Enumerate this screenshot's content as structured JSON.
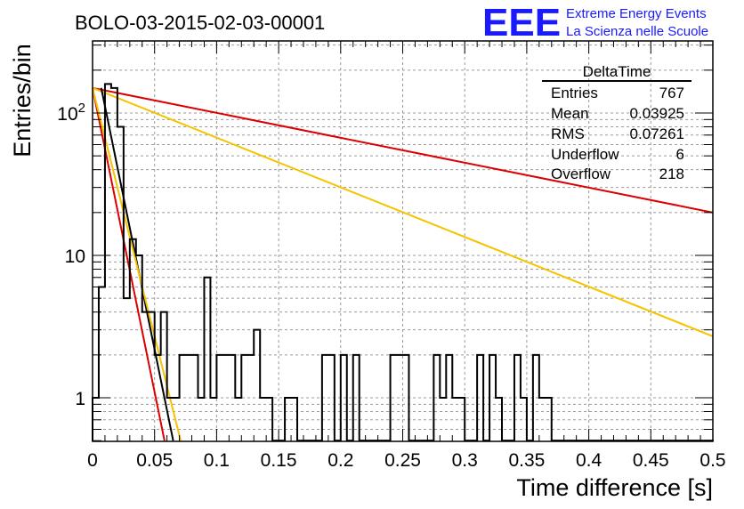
{
  "header": {
    "run_title": "BOLO-03-2015-02-03-00001",
    "logo": {
      "mark": "EEE",
      "line1": "Extreme Energy Events",
      "line2": "La Scienza nelle Scuole",
      "color": "#1a1aff"
    }
  },
  "stats_box": {
    "title": "DeltaTime",
    "rows": [
      {
        "label": "Entries",
        "value": "767"
      },
      {
        "label": "Mean",
        "value": "0.03925"
      },
      {
        "label": "RMS",
        "value": "0.07261"
      },
      {
        "label": "Underflow",
        "value": "6"
      },
      {
        "label": "Overflow",
        "value": "218"
      }
    ]
  },
  "chart_data": {
    "type": "histogram",
    "xlabel": "Time difference [s]",
    "ylabel": "Entries/bin",
    "xlim": [
      0,
      0.5
    ],
    "ylim": [
      0.5,
      300
    ],
    "yscale": "log",
    "grid": true,
    "x_ticks": [
      0,
      0.05,
      0.1,
      0.15,
      0.2,
      0.25,
      0.3,
      0.35,
      0.4,
      0.45,
      0.5
    ],
    "x_tick_labels": [
      "0",
      "0.05",
      "0.1",
      "0.15",
      "0.2",
      "0.25",
      "0.3",
      "0.35",
      "0.4",
      "0.45",
      "0.5"
    ],
    "y_tick_labels": [
      "1",
      "10",
      "10^2"
    ],
    "bin_width": 0.005,
    "bin_contents": [
      1,
      6,
      160,
      150,
      80,
      5,
      13,
      10,
      4,
      4,
      2,
      4,
      1,
      1,
      2,
      2,
      2,
      1,
      7,
      1,
      2,
      2,
      2,
      1,
      2,
      2,
      3,
      1,
      1,
      0.5,
      0.5,
      1,
      1,
      0.5,
      0.5,
      0.5,
      0.5,
      2,
      2,
      0.5,
      2,
      0.5,
      2,
      0.5,
      0.5,
      0.5,
      0.5,
      0.5,
      2,
      2,
      2,
      0.5,
      0.5,
      0.5,
      0.5,
      2,
      1,
      2,
      1,
      1,
      0.5,
      0.5,
      2,
      0.5,
      2,
      1,
      0.5,
      0.5,
      2,
      1,
      0.5,
      2,
      1,
      1,
      0.5,
      0.5,
      0.5,
      0.5,
      0.5,
      0.5,
      0.5,
      0.5,
      0.5,
      0.5,
      0.5,
      0.5,
      0.5,
      0.5,
      0.5,
      0.5,
      0.5,
      0.5,
      0.5,
      0.5,
      0.5,
      0.5,
      0.5,
      0.5,
      0.5,
      0.5
    ],
    "fit_lines": [
      {
        "color": "#dd0000",
        "points": [
          [
            0,
            150
          ],
          [
            0.5,
            20
          ]
        ]
      },
      {
        "color": "#f5c400",
        "points": [
          [
            0,
            150
          ],
          [
            0.5,
            2.7
          ]
        ]
      },
      {
        "color": "#000000",
        "points": [
          [
            0.007,
            150
          ],
          [
            0.065,
            0.5
          ]
        ]
      },
      {
        "color": "#dd0000",
        "points": [
          [
            0,
            150
          ],
          [
            0.058,
            0.5
          ]
        ]
      },
      {
        "color": "#f5c400",
        "points": [
          [
            0,
            150
          ],
          [
            0.071,
            0.5
          ]
        ]
      }
    ]
  }
}
